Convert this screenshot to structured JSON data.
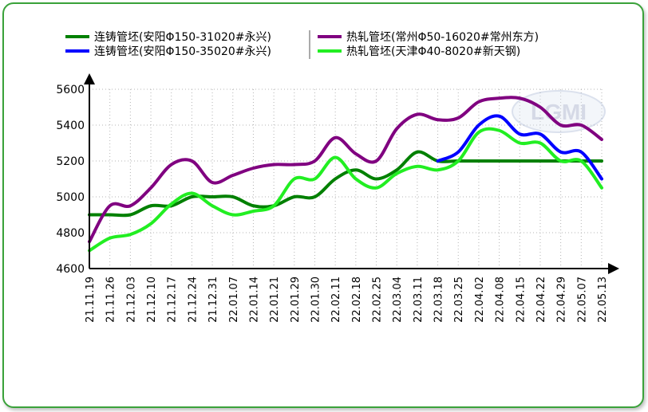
{
  "chart_data": {
    "type": "line",
    "x": [
      "21.11.19",
      "21.11.26",
      "21.12.03",
      "21.12.10",
      "21.12.17",
      "21.12.24",
      "21.12.31",
      "22.01.07",
      "22.01.14",
      "22.01.21",
      "22.01.29",
      "22.01.30",
      "22.02.11",
      "22.02.18",
      "22.02.25",
      "22.03.04",
      "22.03.11",
      "22.03.18",
      "22.03.25",
      "22.04.02",
      "22.04.08",
      "22.04.15",
      "22.04.22",
      "22.04.29",
      "22.05.07",
      "22.05.13"
    ],
    "ylim": [
      4600,
      5600
    ],
    "yticks": [
      4600,
      4800,
      5000,
      5200,
      5400,
      5600
    ],
    "grid": true,
    "legend_position": "top",
    "series": [
      {
        "name": "连铸管坯(安阳Φ150-31020#永兴)",
        "color": "#008000",
        "values": [
          4900,
          4900,
          4900,
          4950,
          4950,
          5000,
          5000,
          5000,
          4950,
          4950,
          5000,
          5000,
          5100,
          5150,
          5100,
          5150,
          5250,
          5200,
          5200,
          5200,
          5200,
          5200,
          5200,
          5200,
          5200,
          5200
        ]
      },
      {
        "name": "连铸管坯(安阳Φ150-35020#永兴)",
        "color": "#0000ff",
        "values": [
          null,
          null,
          null,
          null,
          null,
          null,
          null,
          null,
          null,
          null,
          null,
          null,
          null,
          null,
          null,
          null,
          null,
          5200,
          5250,
          5400,
          5450,
          5350,
          5350,
          5250,
          5250,
          5100
        ]
      },
      {
        "name": "热轧管坯(常州Φ50-16020#常州东方)",
        "color": "#800080",
        "values": [
          4750,
          4950,
          4950,
          5050,
          5180,
          5200,
          5080,
          5120,
          5160,
          5180,
          5180,
          5200,
          5330,
          5240,
          5200,
          5380,
          5460,
          5430,
          5440,
          5530,
          5550,
          5550,
          5500,
          5400,
          5400,
          5320
        ]
      },
      {
        "name": "热轧管坯(天津Φ40-8020#新天钢)",
        "color": "#22ee22",
        "values": [
          4700,
          4770,
          4790,
          4850,
          4960,
          5020,
          4950,
          4900,
          4920,
          4950,
          5100,
          5100,
          5220,
          5100,
          5050,
          5130,
          5170,
          5150,
          5200,
          5360,
          5370,
          5300,
          5300,
          5200,
          5200,
          5050
        ]
      }
    ]
  },
  "legend": {
    "items": [
      {
        "label": "连铸管坯(安阳Φ150-31020#永兴)",
        "color": "#008000"
      },
      {
        "label": "连铸管坯(安阳Φ150-35020#永兴)",
        "color": "#0000ff"
      },
      {
        "label": "热轧管坯(常州Φ50-16020#常州东方)",
        "color": "#800080"
      },
      {
        "label": "热轧管坯(天津Φ40-8020#新天钢)",
        "color": "#22ee22"
      }
    ]
  },
  "watermark": {
    "text": "LGMI"
  }
}
